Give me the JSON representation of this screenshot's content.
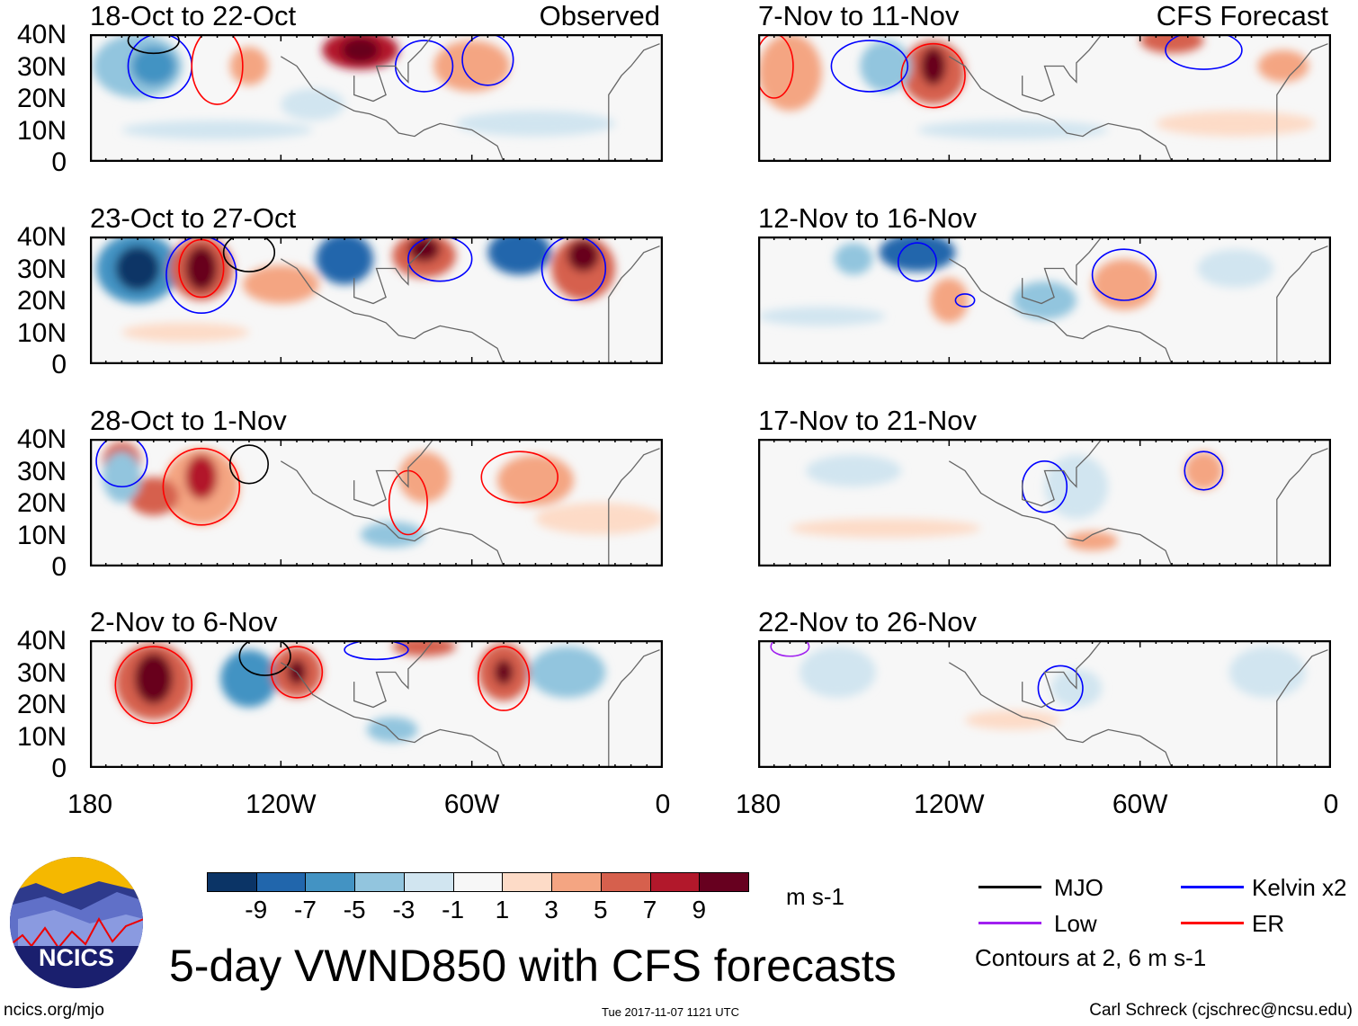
{
  "panels": [
    {
      "title": "18-Oct to 22-Oct",
      "tag": "Observed"
    },
    {
      "title": "23-Oct to 27-Oct",
      "tag": ""
    },
    {
      "title": "28-Oct to 1-Nov",
      "tag": ""
    },
    {
      "title": "2-Nov to 6-Nov",
      "tag": ""
    },
    {
      "title": "7-Nov to 11-Nov",
      "tag": "CFS Forecast"
    },
    {
      "title": "12-Nov to 16-Nov",
      "tag": ""
    },
    {
      "title": "17-Nov to 21-Nov",
      "tag": ""
    },
    {
      "title": "22-Nov to 26-Nov",
      "tag": ""
    }
  ],
  "y_ticks": [
    "40N",
    "30N",
    "20N",
    "10N",
    "0"
  ],
  "x_ticks": [
    "180",
    "120W",
    "60W",
    "0"
  ],
  "colorbar": {
    "colors": [
      "#0b3466",
      "#2166ac",
      "#4393c3",
      "#92c5de",
      "#d1e5f0",
      "#f7f7f7",
      "#fddbc7",
      "#f4a582",
      "#d6604d",
      "#b2182b",
      "#67001f"
    ],
    "labels": [
      "-9",
      "-7",
      "-5",
      "-3",
      "-1",
      "1",
      "3",
      "5",
      "7",
      "9"
    ],
    "units": "m s-1"
  },
  "legend": {
    "items": [
      {
        "label": "MJO",
        "color": "#000000"
      },
      {
        "label": "Kelvin x2",
        "color": "#0000ff"
      },
      {
        "label": "Low",
        "color": "#a020f0"
      },
      {
        "label": "ER",
        "color": "#ff0000"
      }
    ],
    "note": "Contours at 2, 6 m s-1"
  },
  "title": "5-day VWND850 with CFS forecasts",
  "logo_text": "NCICS",
  "footer": {
    "left": "ncics.org/mjo",
    "center": "Tue 2017-11-07 1121 UTC",
    "right": "Carl Schreck (cjschrec@ncsu.edu)"
  }
}
